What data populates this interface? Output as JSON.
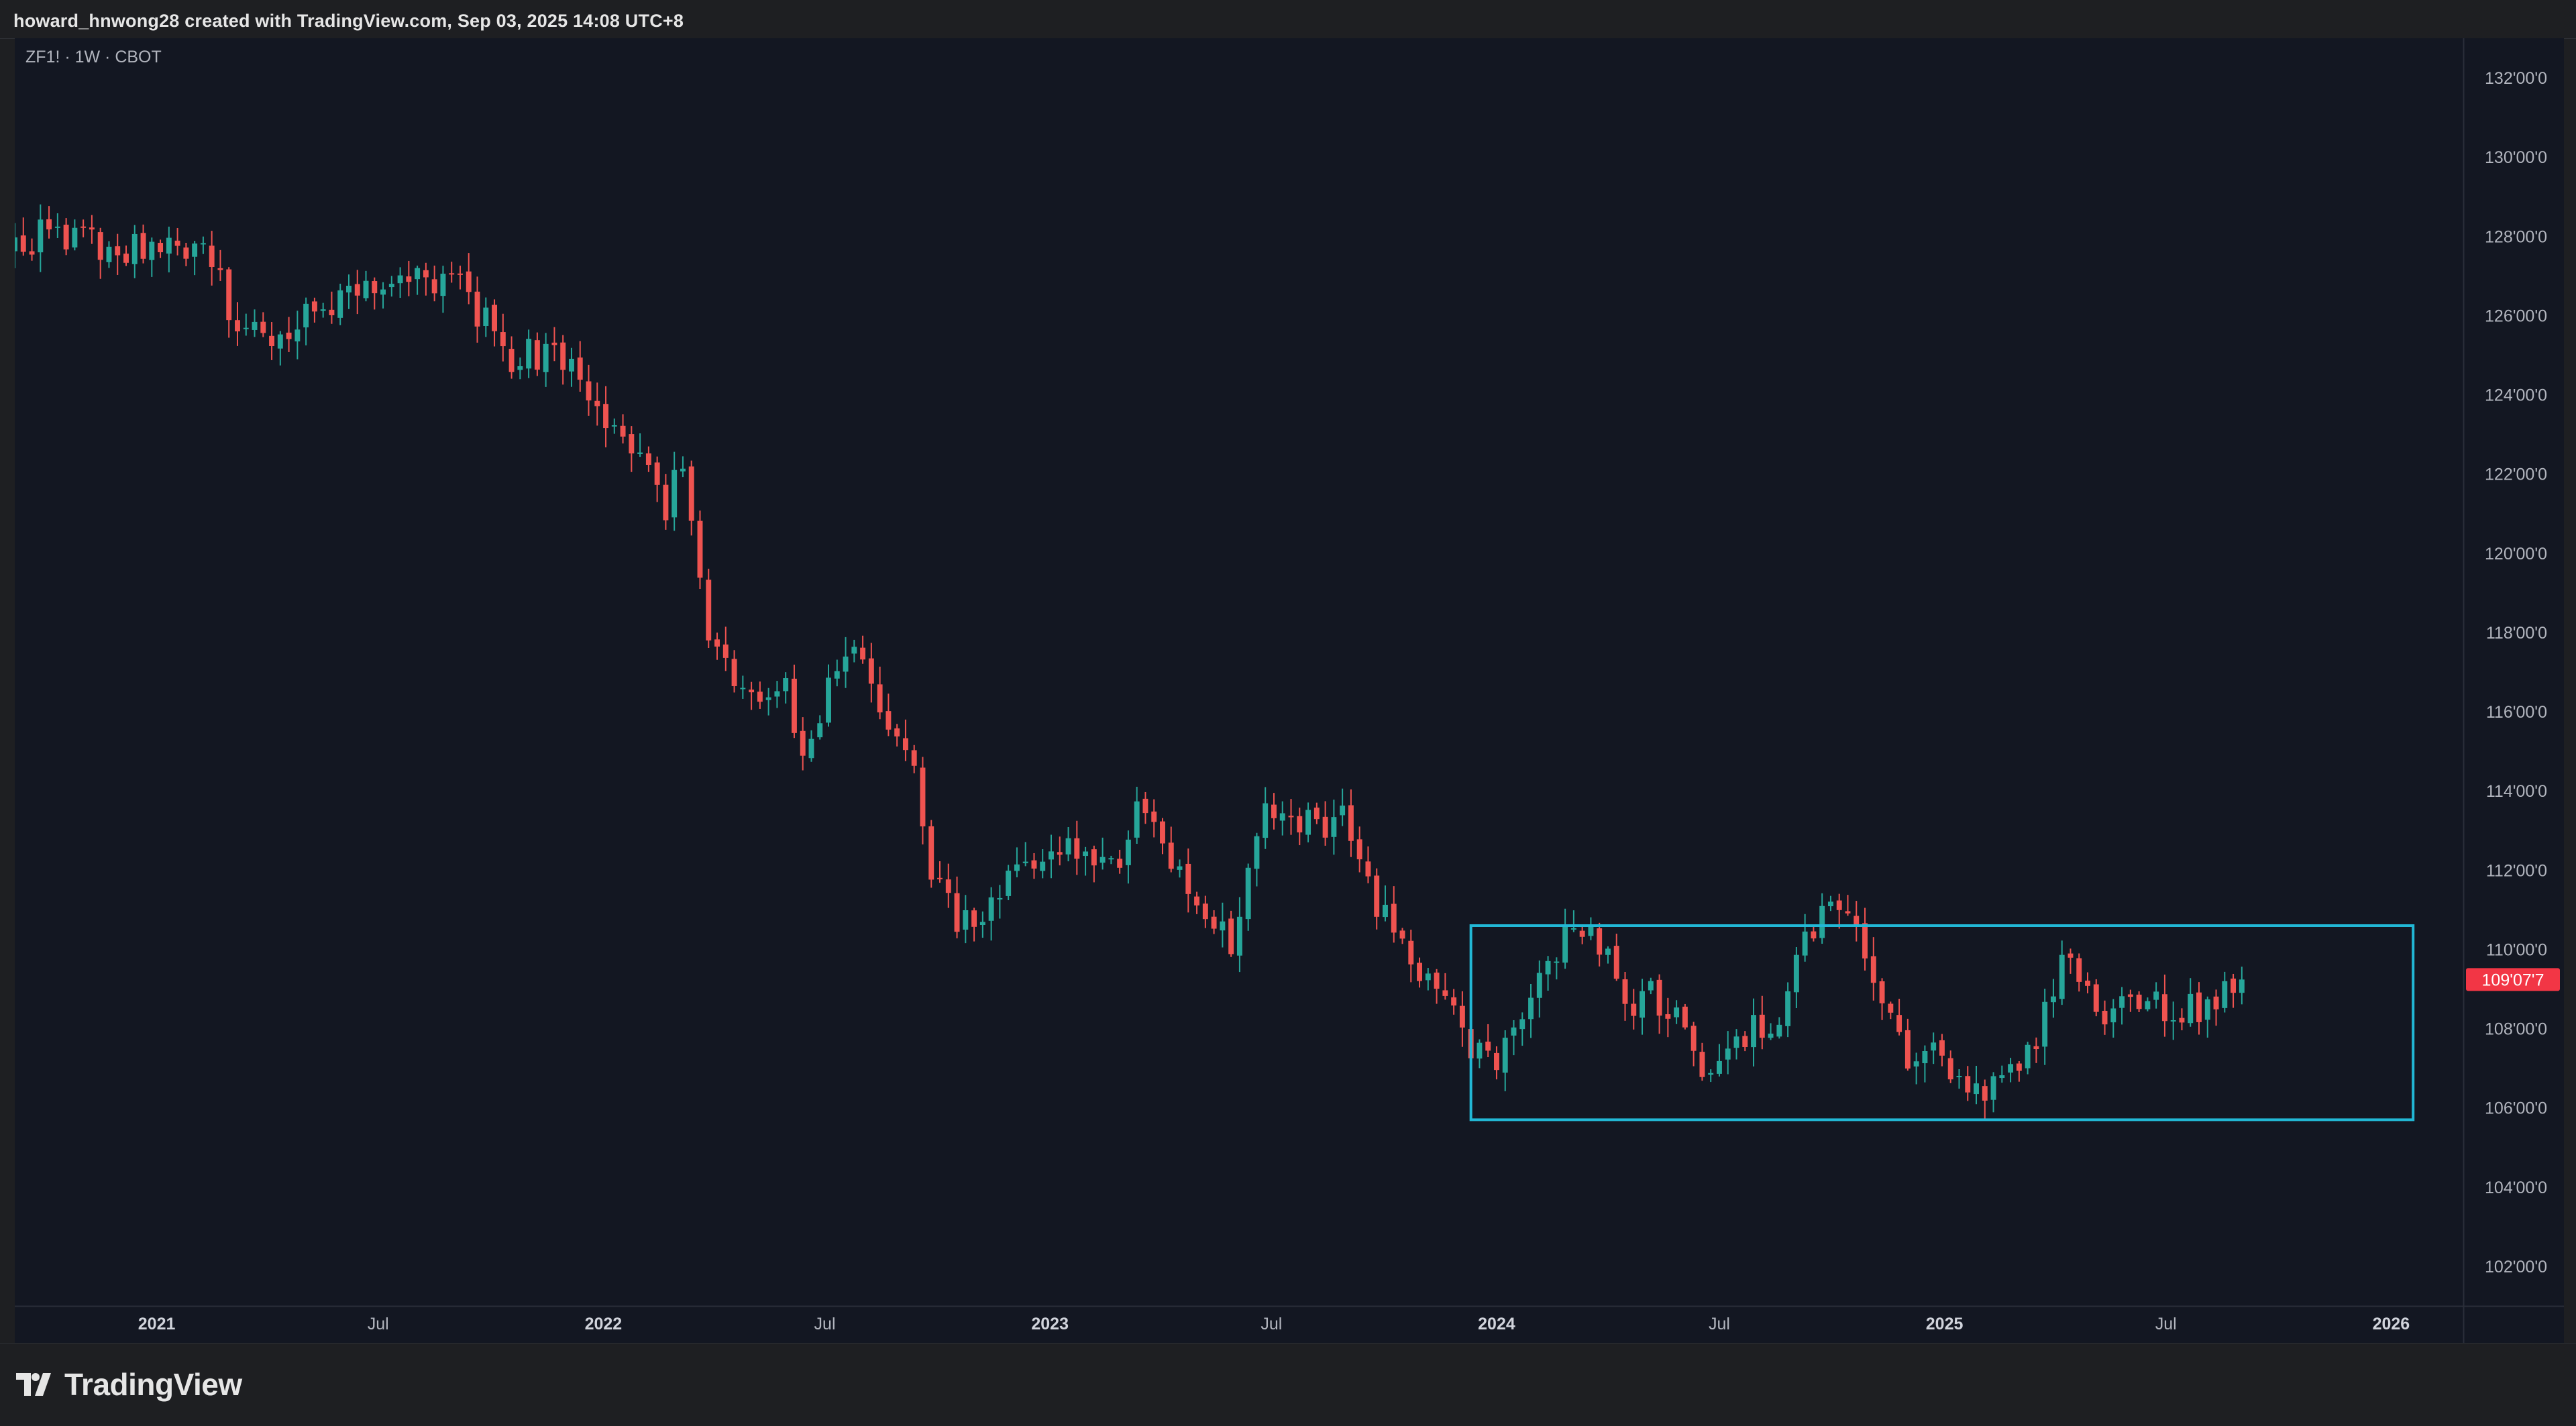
{
  "header": {
    "attribution": "howard_hnwong28 created with TradingView.com, Sep 03, 2025 14:08 UTC+8"
  },
  "chart_header": {
    "symbol_line": "ZF1! · 1W · CBOT"
  },
  "footer": {
    "brand": "TradingView",
    "logo_icon": "tradingview-logo-icon"
  },
  "colors": {
    "background": "#131722",
    "up": "#26a69a",
    "down": "#ef5350",
    "box": "#22b8d6",
    "axis_text": "#b2b5be",
    "price_tag": "#f23645"
  },
  "chart_data": {
    "type": "candlestick",
    "timeframe": "1W",
    "x_axis_labels": [
      "2021",
      "Jul",
      "2022",
      "Jul",
      "2023",
      "Jul",
      "2024",
      "Jul",
      "2025",
      "Jul",
      "2026"
    ],
    "x_axis_label_dates": [
      "2021-01-01",
      "2021-07-01",
      "2022-01-01",
      "2022-07-01",
      "2023-01-01",
      "2023-07-01",
      "2024-01-01",
      "2024-07-01",
      "2025-01-01",
      "2025-07-01",
      "2026-01-01"
    ],
    "x_axis_bold": [
      "2021",
      "2022",
      "2023",
      "2024",
      "2025",
      "2026"
    ],
    "x_range": [
      "2020-09-07",
      "2026-03-01"
    ],
    "y_range": [
      101,
      133
    ],
    "y_ticks": [
      102,
      104,
      106,
      108,
      110,
      112,
      114,
      116,
      118,
      120,
      122,
      124,
      126,
      128,
      130,
      132
    ],
    "y_tick_labels": [
      "102'00'0",
      "104'00'0",
      "106'00'0",
      "108'00'0",
      "110'00'0",
      "112'00'0",
      "114'00'0",
      "116'00'0",
      "118'00'0",
      "120'00'0",
      "122'00'0",
      "124'00'0",
      "126'00'0",
      "128'00'0",
      "130'00'0",
      "132'00'0"
    ],
    "last_price": 109.24,
    "last_price_label": "109'07'7",
    "range_box": {
      "start": "2023-12-11",
      "end": "2026-01-19",
      "top": 110.6,
      "bottom": 105.7
    },
    "close_anchors": [
      [
        "2020-09-07",
        127.8
      ],
      [
        "2020-10-05",
        128.1
      ],
      [
        "2020-11-09",
        127.8
      ],
      [
        "2020-12-07",
        127.7
      ],
      [
        "2021-01-04",
        127.6
      ],
      [
        "2021-02-01",
        127.6
      ],
      [
        "2021-02-22",
        127.3
      ],
      [
        "2021-03-01",
        125.9
      ],
      [
        "2021-03-15",
        125.8
      ],
      [
        "2021-04-05",
        125.5
      ],
      [
        "2021-05-03",
        126.2
      ],
      [
        "2021-06-07",
        126.6
      ],
      [
        "2021-07-05",
        126.8
      ],
      [
        "2021-08-02",
        126.9
      ],
      [
        "2021-09-06",
        126.7
      ],
      [
        "2021-09-27",
        125.8
      ],
      [
        "2021-10-18",
        124.9
      ],
      [
        "2021-11-15",
        125.1
      ],
      [
        "2021-12-13",
        124.8
      ],
      [
        "2022-01-03",
        123.2
      ],
      [
        "2022-01-31",
        122.6
      ],
      [
        "2022-02-21",
        121.0
      ],
      [
        "2022-03-07",
        122.5
      ],
      [
        "2022-03-28",
        118.2
      ],
      [
        "2022-04-18",
        116.8
      ],
      [
        "2022-05-09",
        116.6
      ],
      [
        "2022-05-30",
        116.6
      ],
      [
        "2022-06-13",
        114.9
      ],
      [
        "2022-07-04",
        116.6
      ],
      [
        "2022-08-01",
        117.6
      ],
      [
        "2022-08-22",
        115.8
      ],
      [
        "2022-09-12",
        114.6
      ],
      [
        "2022-09-26",
        112.2
      ],
      [
        "2022-10-17",
        110.8
      ],
      [
        "2022-11-07",
        111.0
      ],
      [
        "2022-12-05",
        112.0
      ],
      [
        "2022-12-26",
        112.2
      ],
      [
        "2023-01-16",
        113.0
      ],
      [
        "2023-02-06",
        112.2
      ],
      [
        "2023-02-27",
        111.9
      ],
      [
        "2023-03-13",
        113.3
      ],
      [
        "2023-03-27",
        112.9
      ],
      [
        "2023-04-17",
        111.8
      ],
      [
        "2023-05-08",
        110.6
      ],
      [
        "2023-05-29",
        110.2
      ],
      [
        "2023-06-12",
        111.9
      ],
      [
        "2023-06-26",
        113.5
      ],
      [
        "2023-07-17",
        113.6
      ],
      [
        "2023-08-07",
        112.9
      ],
      [
        "2023-08-28",
        113.4
      ],
      [
        "2023-09-18",
        111.4
      ],
      [
        "2023-10-09",
        110.7
      ],
      [
        "2023-10-30",
        109.5
      ],
      [
        "2023-11-20",
        108.7
      ],
      [
        "2023-12-11",
        107.4
      ],
      [
        "2024-01-01",
        106.9
      ],
      [
        "2024-01-22",
        108.3
      ],
      [
        "2024-02-12",
        109.9
      ],
      [
        "2024-03-04",
        110.4
      ],
      [
        "2024-03-25",
        110.3
      ],
      [
        "2024-04-15",
        108.7
      ],
      [
        "2024-05-06",
        108.9
      ],
      [
        "2024-05-27",
        108.3
      ],
      [
        "2024-06-17",
        106.5
      ],
      [
        "2024-07-08",
        107.5
      ],
      [
        "2024-07-29",
        108.0
      ],
      [
        "2024-08-19",
        108.3
      ],
      [
        "2024-09-09",
        110.4
      ],
      [
        "2024-09-30",
        111.3
      ],
      [
        "2024-10-21",
        110.5
      ],
      [
        "2024-11-11",
        108.7
      ],
      [
        "2024-12-02",
        107.0
      ],
      [
        "2024-12-23",
        107.7
      ],
      [
        "2025-01-13",
        106.7
      ],
      [
        "2025-02-03",
        106.3
      ],
      [
        "2025-03-03",
        107.1
      ],
      [
        "2025-03-24",
        108.3
      ],
      [
        "2025-04-14",
        110.0
      ],
      [
        "2025-05-05",
        108.2
      ],
      [
        "2025-05-26",
        108.4
      ],
      [
        "2025-06-16",
        108.5
      ],
      [
        "2025-07-07",
        108.6
      ],
      [
        "2025-07-28",
        108.6
      ],
      [
        "2025-08-18",
        109.0
      ],
      [
        "2025-09-01",
        109.24
      ]
    ]
  }
}
